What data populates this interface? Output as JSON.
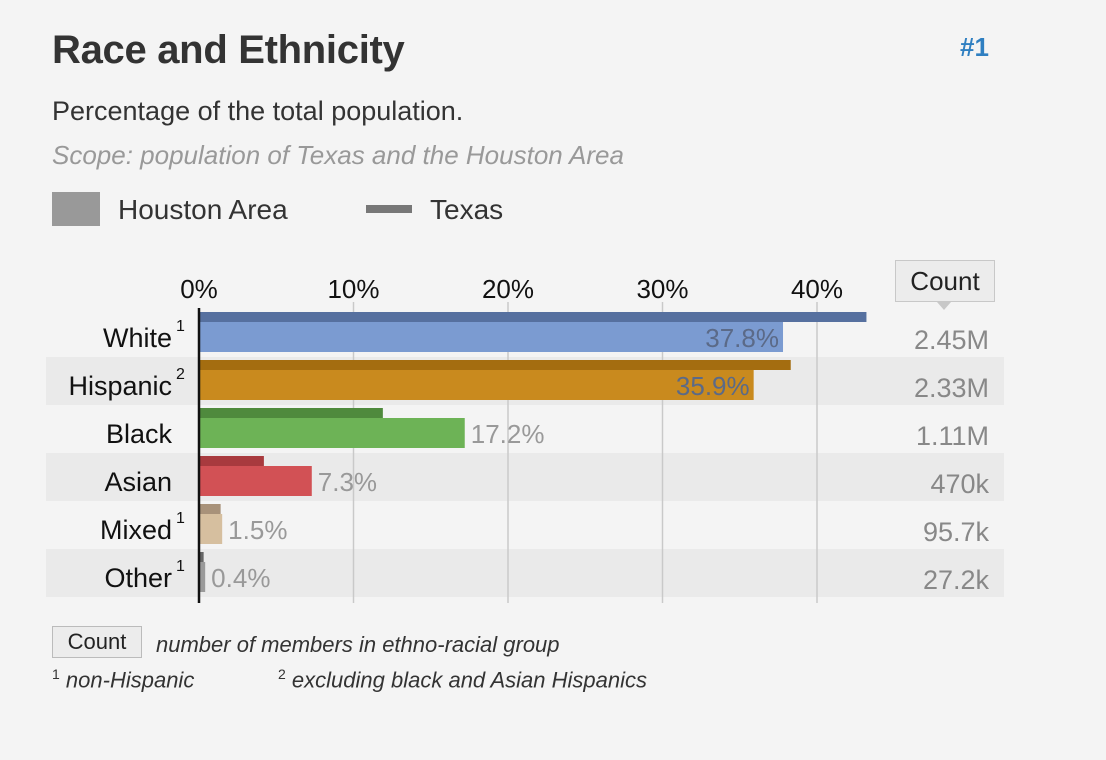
{
  "header": {
    "title": "Race and Ethnicity",
    "rank": "#1",
    "subtitle": "Percentage of the total population.",
    "scope": "Scope: population of Texas and the Houston Area"
  },
  "legend": {
    "area_label": "Houston Area",
    "state_label": "Texas"
  },
  "count_header": "Count",
  "footer": {
    "count_key": "Count",
    "count_desc": "number of members in ethno-racial group",
    "note1_mark": "1",
    "note1_text": "non-Hispanic",
    "note2_mark": "2",
    "note2_text": "excluding black and Asian Hispanics"
  },
  "chart_data": {
    "type": "bar",
    "orientation": "horizontal",
    "xlim": [
      0,
      45
    ],
    "ticks": [
      "0%",
      "10%",
      "20%",
      "30%",
      "40%"
    ],
    "tick_values": [
      0,
      10,
      20,
      30,
      40
    ],
    "grid": true,
    "series": [
      {
        "name": "Houston Area",
        "values": [
          37.8,
          35.9,
          17.2,
          7.3,
          1.5,
          0.4
        ]
      },
      {
        "name": "Texas",
        "values": [
          43.2,
          38.3,
          11.9,
          4.2,
          1.4,
          0.3
        ]
      }
    ],
    "categories": [
      {
        "label": "White",
        "sup": "1",
        "value_label": "37.8%",
        "count": "2.45M",
        "color": "#7b9bd1",
        "state_color": "#56709f"
      },
      {
        "label": "Hispanic",
        "sup": "2",
        "value_label": "35.9%",
        "count": "2.33M",
        "color": "#c98a1e",
        "state_color": "#a46d10"
      },
      {
        "label": "Black",
        "sup": "",
        "value_label": "17.2%",
        "count": "1.11M",
        "color": "#6db356",
        "state_color": "#4f8a3d"
      },
      {
        "label": "Asian",
        "sup": "",
        "value_label": "7.3%",
        "count": "470k",
        "color": "#d25155",
        "state_color": "#a83a3e"
      },
      {
        "label": "Mixed",
        "sup": "1",
        "value_label": "1.5%",
        "count": "95.7k",
        "color": "#d6bf9f",
        "state_color": "#a8927a"
      },
      {
        "label": "Other",
        "sup": "1",
        "value_label": "0.4%",
        "count": "27.2k",
        "color": "#9a9a9a",
        "state_color": "#666666"
      }
    ]
  }
}
